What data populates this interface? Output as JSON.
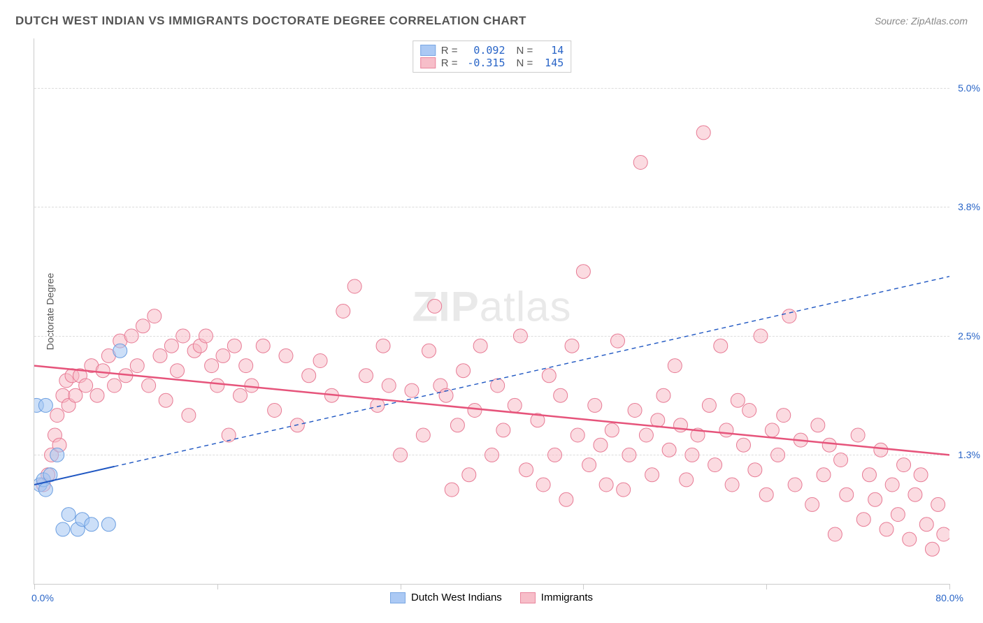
{
  "title": "DUTCH WEST INDIAN VS IMMIGRANTS DOCTORATE DEGREE CORRELATION CHART",
  "source": "Source: ZipAtlas.com",
  "watermark_bold": "ZIP",
  "watermark_light": "atlas",
  "y_axis_title": "Doctorate Degree",
  "chart": {
    "type": "scatter-correlation",
    "xlim": [
      0,
      80
    ],
    "ylim": [
      0,
      5.5
    ],
    "x_ticks": [
      0,
      16,
      32,
      48,
      64,
      80
    ],
    "y_gridlines": [
      1.3,
      2.5,
      3.8,
      5.0
    ],
    "y_tick_labels": [
      "1.3%",
      "2.5%",
      "3.8%",
      "5.0%"
    ],
    "x_tick_labels": {
      "left": "0.0%",
      "right": "80.0%"
    },
    "background_color": "#ffffff",
    "grid_color": "#dcdcdc",
    "axis_color": "#cccccc"
  },
  "series": {
    "blue": {
      "name": "Dutch West Indians",
      "r_value": "0.092",
      "n_value": "14",
      "fill_color": "#a3c4f3",
      "stroke_color": "#6b9ee0",
      "fill_opacity": 0.55,
      "marker_radius": 10,
      "line_color": "#1e56c2",
      "line_dash": "6 5",
      "line_width": 2,
      "solid_extent_x": 7,
      "trend": {
        "x1": 0,
        "y1": 1.0,
        "x2": 80,
        "y2": 3.1
      },
      "points": [
        [
          0.2,
          1.8
        ],
        [
          0.5,
          1.0
        ],
        [
          0.8,
          1.05
        ],
        [
          1.0,
          0.95
        ],
        [
          1.4,
          1.1
        ],
        [
          2.0,
          1.3
        ],
        [
          2.5,
          0.55
        ],
        [
          3.0,
          0.7
        ],
        [
          3.8,
          0.55
        ],
        [
          4.2,
          0.65
        ],
        [
          5.0,
          0.6
        ],
        [
          6.5,
          0.6
        ],
        [
          7.5,
          2.35
        ],
        [
          1.0,
          1.8
        ]
      ]
    },
    "pink": {
      "name": "Immigrants",
      "r_value": "-0.315",
      "n_value": "145",
      "fill_color": "#f7b8c4",
      "stroke_color": "#e77a94",
      "fill_opacity": 0.5,
      "marker_radius": 10,
      "line_color": "#e6547b",
      "line_dash": "none",
      "line_width": 2.5,
      "trend": {
        "x1": 0,
        "y1": 2.2,
        "x2": 80,
        "y2": 1.3
      },
      "points": [
        [
          0.8,
          1.0
        ],
        [
          1.2,
          1.1
        ],
        [
          1.5,
          1.3
        ],
        [
          1.8,
          1.5
        ],
        [
          2.0,
          1.7
        ],
        [
          2.2,
          1.4
        ],
        [
          2.5,
          1.9
        ],
        [
          2.8,
          2.05
        ],
        [
          3.0,
          1.8
        ],
        [
          3.3,
          2.1
        ],
        [
          3.6,
          1.9
        ],
        [
          4.0,
          2.1
        ],
        [
          4.5,
          2.0
        ],
        [
          5.0,
          2.2
        ],
        [
          5.5,
          1.9
        ],
        [
          6.0,
          2.15
        ],
        [
          6.5,
          2.3
        ],
        [
          7.0,
          2.0
        ],
        [
          7.5,
          2.45
        ],
        [
          8.0,
          2.1
        ],
        [
          8.5,
          2.5
        ],
        [
          9.0,
          2.2
        ],
        [
          9.5,
          2.6
        ],
        [
          10.0,
          2.0
        ],
        [
          10.5,
          2.7
        ],
        [
          11.0,
          2.3
        ],
        [
          11.5,
          1.85
        ],
        [
          12.0,
          2.4
        ],
        [
          12.5,
          2.15
        ],
        [
          13.0,
          2.5
        ],
        [
          13.5,
          1.7
        ],
        [
          14.0,
          2.35
        ],
        [
          14.5,
          2.4
        ],
        [
          15.0,
          2.5
        ],
        [
          15.5,
          2.2
        ],
        [
          16.0,
          2.0
        ],
        [
          16.5,
          2.3
        ],
        [
          17.0,
          1.5
        ],
        [
          17.5,
          2.4
        ],
        [
          18.0,
          1.9
        ],
        [
          18.5,
          2.2
        ],
        [
          19.0,
          2.0
        ],
        [
          20.0,
          2.4
        ],
        [
          21.0,
          1.75
        ],
        [
          22.0,
          2.3
        ],
        [
          23.0,
          1.6
        ],
        [
          24.0,
          2.1
        ],
        [
          25.0,
          2.25
        ],
        [
          26.0,
          1.9
        ],
        [
          27.0,
          2.75
        ],
        [
          28.0,
          3.0
        ],
        [
          29.0,
          2.1
        ],
        [
          30.0,
          1.8
        ],
        [
          30.5,
          2.4
        ],
        [
          31.0,
          2.0
        ],
        [
          32.0,
          1.3
        ],
        [
          33.0,
          1.95
        ],
        [
          34.0,
          1.5
        ],
        [
          34.5,
          2.35
        ],
        [
          35.0,
          2.8
        ],
        [
          35.5,
          2.0
        ],
        [
          36.0,
          1.9
        ],
        [
          36.5,
          0.95
        ],
        [
          37.0,
          1.6
        ],
        [
          37.5,
          2.15
        ],
        [
          38.0,
          1.1
        ],
        [
          38.5,
          1.75
        ],
        [
          39.0,
          2.4
        ],
        [
          40.0,
          1.3
        ],
        [
          40.5,
          2.0
        ],
        [
          41.0,
          1.55
        ],
        [
          42.0,
          1.8
        ],
        [
          42.5,
          2.5
        ],
        [
          43.0,
          1.15
        ],
        [
          44.0,
          1.65
        ],
        [
          45.0,
          2.1
        ],
        [
          45.5,
          1.3
        ],
        [
          46.0,
          1.9
        ],
        [
          47.0,
          2.4
        ],
        [
          47.5,
          1.5
        ],
        [
          48.0,
          3.15
        ],
        [
          48.5,
          1.2
        ],
        [
          49.0,
          1.8
        ],
        [
          50.0,
          1.0
        ],
        [
          50.5,
          1.55
        ],
        [
          51.0,
          2.45
        ],
        [
          52.0,
          1.3
        ],
        [
          52.5,
          1.75
        ],
        [
          53.0,
          4.25
        ],
        [
          53.5,
          1.5
        ],
        [
          54.0,
          1.1
        ],
        [
          55.0,
          1.9
        ],
        [
          55.5,
          1.35
        ],
        [
          56.0,
          2.2
        ],
        [
          56.5,
          1.6
        ],
        [
          57.0,
          1.05
        ],
        [
          58.0,
          1.5
        ],
        [
          58.5,
          4.55
        ],
        [
          59.0,
          1.8
        ],
        [
          59.5,
          1.2
        ],
        [
          60.0,
          2.4
        ],
        [
          60.5,
          1.55
        ],
        [
          61.0,
          1.0
        ],
        [
          62.0,
          1.4
        ],
        [
          62.5,
          1.75
        ],
        [
          63.0,
          1.15
        ],
        [
          63.5,
          2.5
        ],
        [
          64.0,
          0.9
        ],
        [
          64.5,
          1.55
        ],
        [
          65.0,
          1.3
        ],
        [
          65.5,
          1.7
        ],
        [
          66.0,
          2.7
        ],
        [
          66.5,
          1.0
        ],
        [
          67.0,
          1.45
        ],
        [
          68.0,
          0.8
        ],
        [
          68.5,
          1.6
        ],
        [
          69.0,
          1.1
        ],
        [
          69.5,
          1.4
        ],
        [
          70.0,
          0.5
        ],
        [
          70.5,
          1.25
        ],
        [
          71.0,
          0.9
        ],
        [
          72.0,
          1.5
        ],
        [
          72.5,
          0.65
        ],
        [
          73.0,
          1.1
        ],
        [
          73.5,
          0.85
        ],
        [
          74.0,
          1.35
        ],
        [
          74.5,
          0.55
        ],
        [
          75.0,
          1.0
        ],
        [
          75.5,
          0.7
        ],
        [
          76.0,
          1.2
        ],
        [
          76.5,
          0.45
        ],
        [
          77.0,
          0.9
        ],
        [
          77.5,
          1.1
        ],
        [
          78.0,
          0.6
        ],
        [
          78.5,
          0.35
        ],
        [
          79.0,
          0.8
        ],
        [
          79.5,
          0.5
        ],
        [
          44.5,
          1.0
        ],
        [
          46.5,
          0.85
        ],
        [
          49.5,
          1.4
        ],
        [
          51.5,
          0.95
        ],
        [
          54.5,
          1.65
        ],
        [
          57.5,
          1.3
        ],
        [
          61.5,
          1.85
        ]
      ]
    }
  },
  "legend_top": {
    "r_label": "R =",
    "n_label": "N ="
  },
  "legend_bottom": [
    {
      "swatch": "blue",
      "label": "Dutch West Indians"
    },
    {
      "swatch": "pink",
      "label": "Immigrants"
    }
  ]
}
